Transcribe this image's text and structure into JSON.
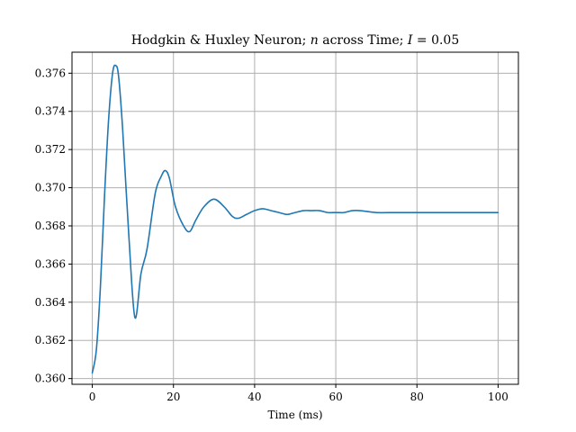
{
  "chart_data": {
    "type": "line",
    "title": {
      "prefix": "Hodgkin & Huxley Neuron; ",
      "var_n": "n",
      "middle": " across Time; ",
      "var_I": "I",
      "suffix": " = 0.05"
    },
    "xlabel": "Time (ms)",
    "ylabel": "",
    "xlim": [
      -5,
      105
    ],
    "ylim": [
      0.3597,
      0.3771
    ],
    "xticks": [
      0,
      20,
      40,
      60,
      80,
      100
    ],
    "xtick_labels": [
      "0",
      "20",
      "40",
      "60",
      "80",
      "100"
    ],
    "yticks": [
      0.36,
      0.362,
      0.364,
      0.366,
      0.368,
      0.37,
      0.372,
      0.374,
      0.376
    ],
    "ytick_labels": [
      "0.360",
      "0.362",
      "0.364",
      "0.366",
      "0.368",
      "0.370",
      "0.372",
      "0.374",
      "0.376"
    ],
    "grid": true,
    "colors": {
      "line": "#1f77b4",
      "grid": "#b0b0b0",
      "axes": "#000000"
    },
    "series": [
      {
        "x": [
          0,
          1,
          2,
          3,
          4,
          5,
          5.8,
          6.5,
          7.5,
          9,
          10.5,
          12.0,
          13.5,
          15.5,
          17.0,
          18.0,
          19.0,
          20.5,
          22.5,
          24.0,
          25.5,
          27.5,
          30.0,
          32.5,
          34.5,
          36.0,
          38.0,
          40.0,
          42.0,
          44.0,
          46.0,
          48.0,
          50.0,
          52.0,
          54.0,
          56.0,
          58.0,
          60.0,
          62.0,
          64.0,
          66.0,
          70.0,
          75.0,
          80.0,
          90.0,
          100.0
        ],
        "y": [
          0.3603,
          0.3615,
          0.3648,
          0.3695,
          0.3735,
          0.376,
          0.3764,
          0.3758,
          0.373,
          0.3675,
          0.3632,
          0.3655,
          0.3668,
          0.3697,
          0.3706,
          0.3709,
          0.3705,
          0.369,
          0.368,
          0.3677,
          0.3683,
          0.369,
          0.3694,
          0.369,
          0.3685,
          0.3684,
          0.3686,
          0.3688,
          0.3689,
          0.3688,
          0.3687,
          0.3686,
          0.3687,
          0.3688,
          0.3688,
          0.3688,
          0.3687,
          0.3687,
          0.3687,
          0.3688,
          0.3688,
          0.3687,
          0.3687,
          0.3687,
          0.3687,
          0.3687
        ]
      }
    ]
  }
}
